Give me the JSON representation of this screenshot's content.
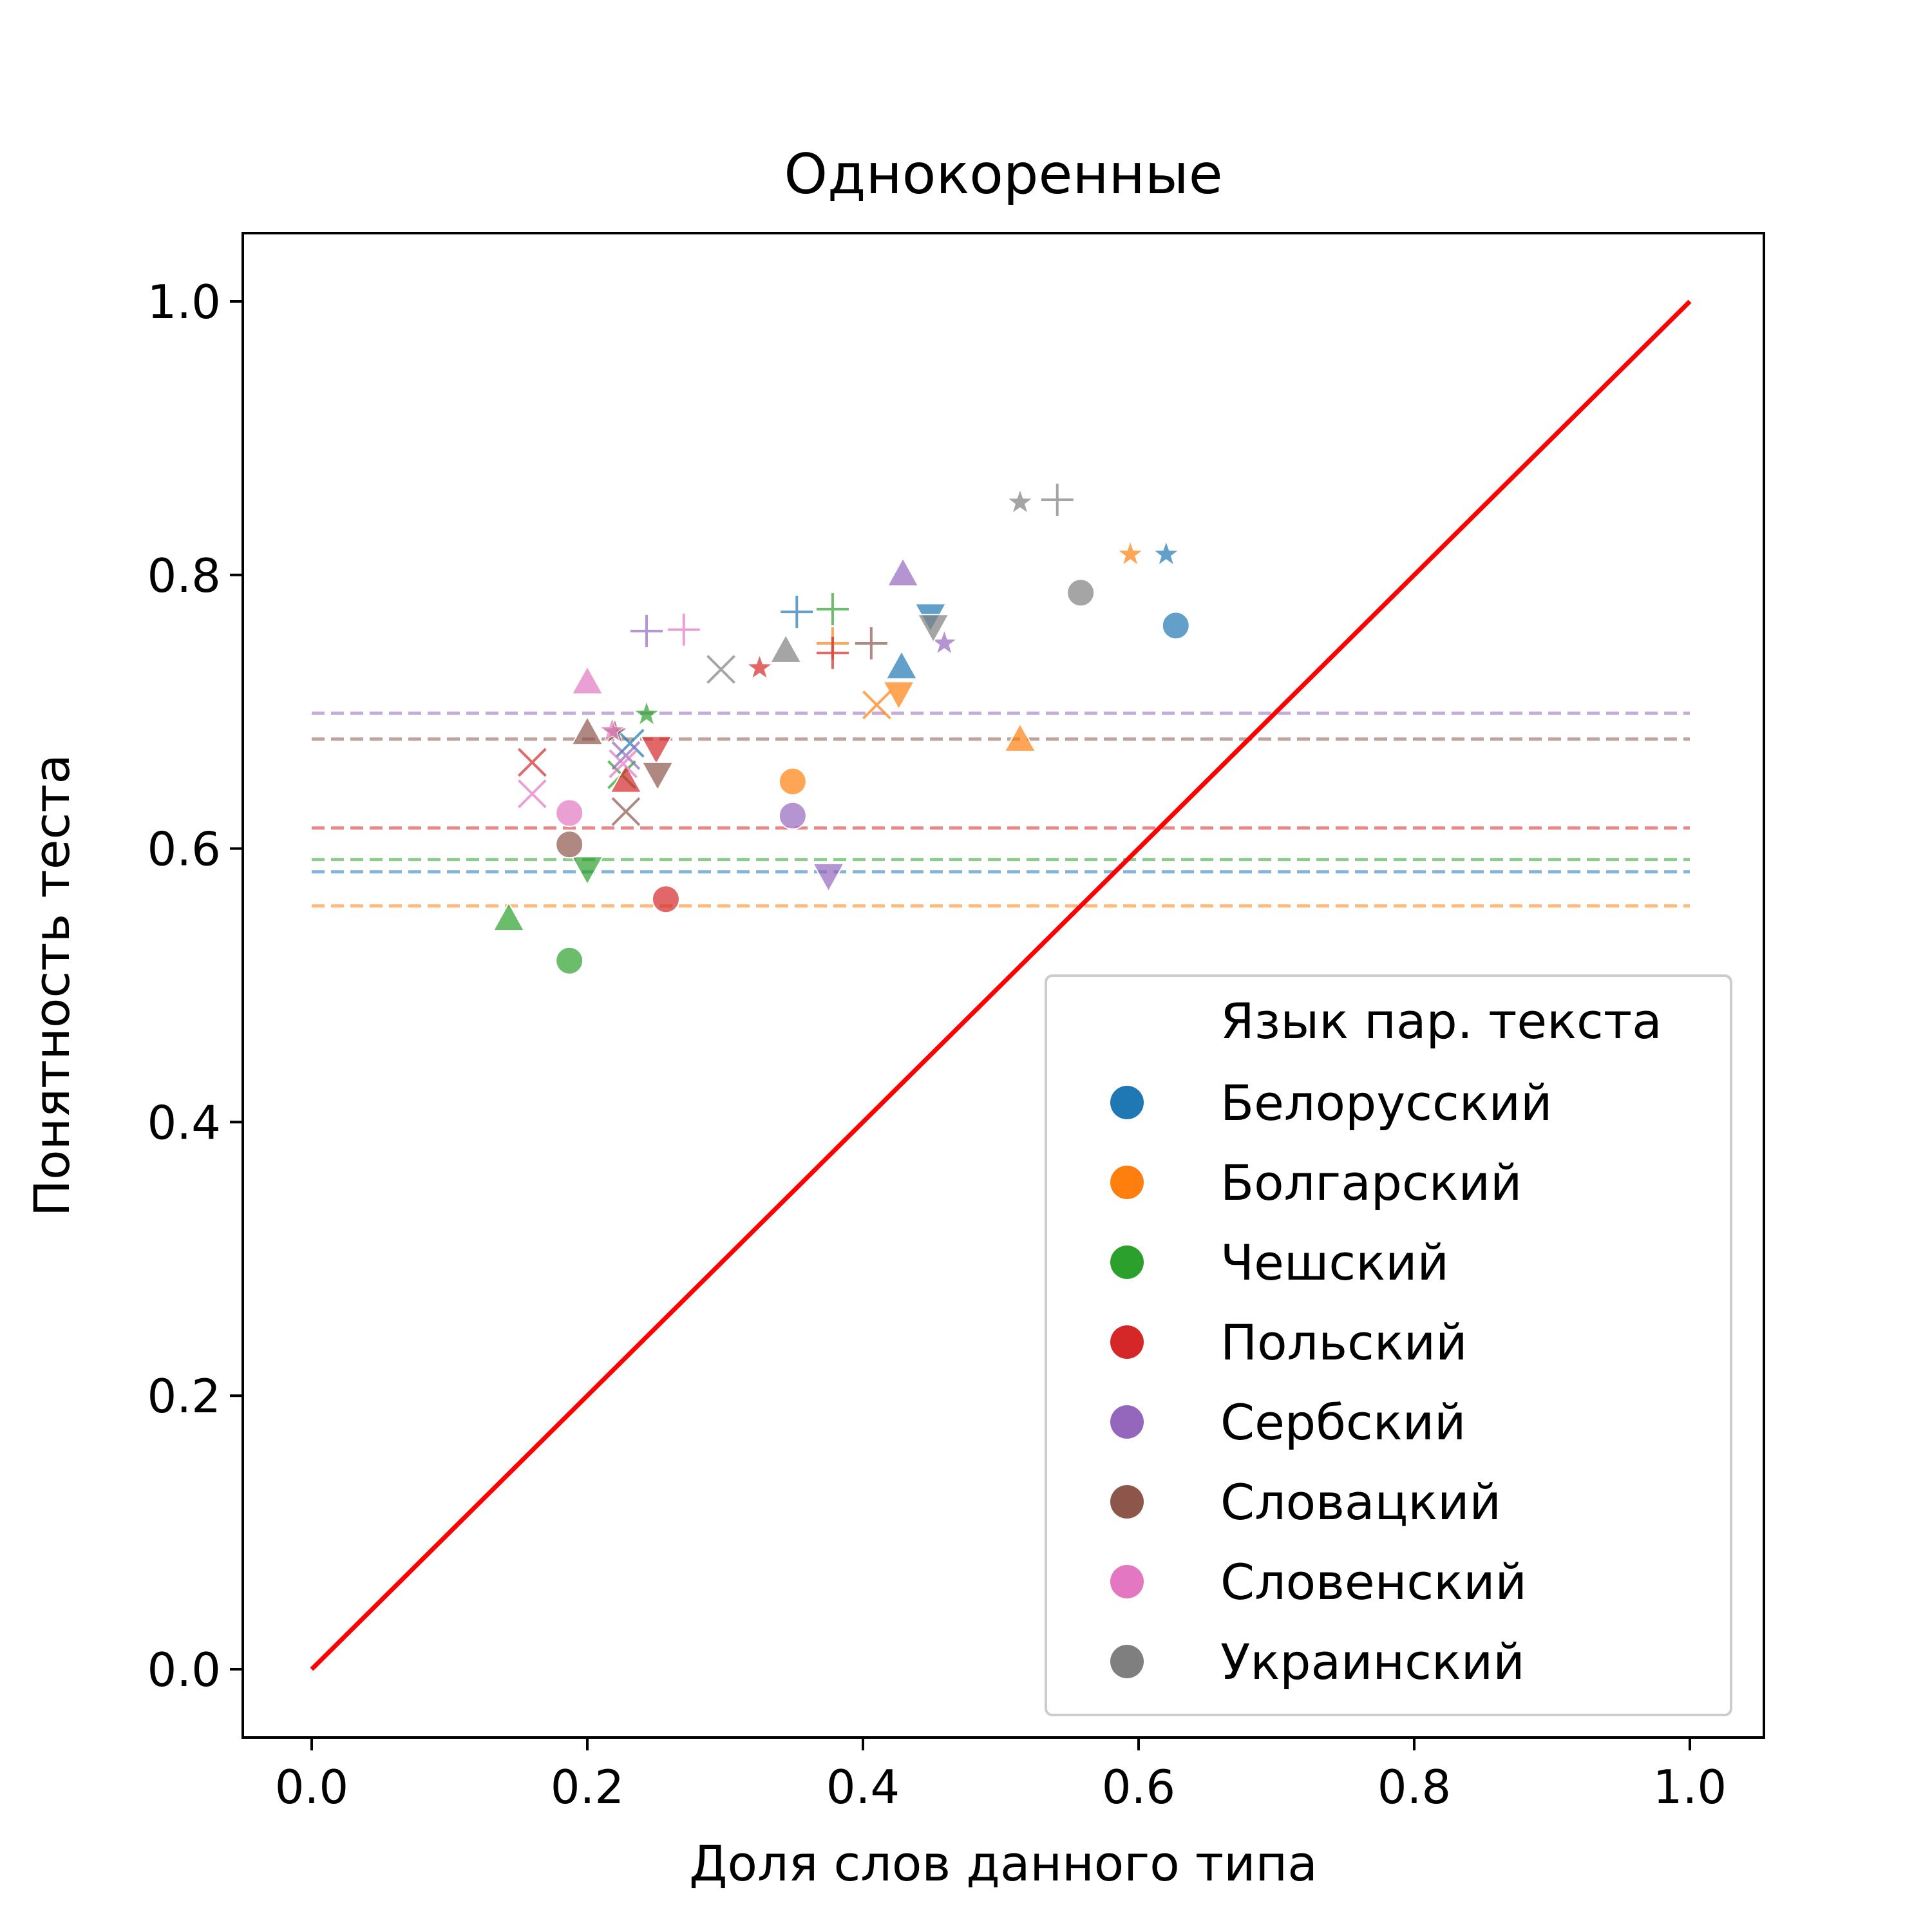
{
  "chart_data": {
    "type": "scatter",
    "title": "Однокоренные",
    "xlabel": "Доля слов данного типа",
    "ylabel": "Понятность теста",
    "xlim": [
      -0.05,
      1.05
    ],
    "ylim": [
      -0.05,
      1.05
    ],
    "xticks": [
      "0.0",
      "0.2",
      "0.4",
      "0.6",
      "0.8",
      "1.0"
    ],
    "yticks": [
      "0.0",
      "0.2",
      "0.4",
      "0.6",
      "0.8",
      "1.0"
    ],
    "grid": false,
    "legend": {
      "title": "Язык пар. текста",
      "placement": "lower-right"
    },
    "reference_line": {
      "x": [
        0,
        1
      ],
      "y": [
        0,
        1
      ],
      "color": "#ff0000"
    },
    "series": [
      {
        "name": "Белорусский",
        "color": "#1f77b4",
        "mean": 0.583,
        "points": [
          {
            "x": 0.627,
            "y": 0.763,
            "m": "o"
          },
          {
            "x": 0.62,
            "y": 0.815,
            "m": "*"
          },
          {
            "x": 0.428,
            "y": 0.733,
            "m": "^"
          },
          {
            "x": 0.449,
            "y": 0.77,
            "m": "v"
          },
          {
            "x": 0.352,
            "y": 0.773,
            "m": "+"
          },
          {
            "x": 0.231,
            "y": 0.677,
            "m": "x"
          }
        ]
      },
      {
        "name": "Болгарский",
        "color": "#ff7f0e",
        "mean": 0.558,
        "points": [
          {
            "x": 0.349,
            "y": 0.649,
            "m": "o"
          },
          {
            "x": 0.594,
            "y": 0.815,
            "m": "*"
          },
          {
            "x": 0.514,
            "y": 0.68,
            "m": "^"
          },
          {
            "x": 0.426,
            "y": 0.713,
            "m": "v"
          },
          {
            "x": 0.378,
            "y": 0.75,
            "m": "+"
          },
          {
            "x": 0.41,
            "y": 0.705,
            "m": "x"
          }
        ]
      },
      {
        "name": "Чешский",
        "color": "#2ca02c",
        "mean": 0.592,
        "points": [
          {
            "x": 0.187,
            "y": 0.518,
            "m": "o"
          },
          {
            "x": 0.243,
            "y": 0.698,
            "m": "*"
          },
          {
            "x": 0.143,
            "y": 0.549,
            "m": "^"
          },
          {
            "x": 0.2,
            "y": 0.585,
            "m": "v"
          },
          {
            "x": 0.378,
            "y": 0.775,
            "m": "+"
          },
          {
            "x": 0.225,
            "y": 0.654,
            "m": "x"
          }
        ]
      },
      {
        "name": "Польский",
        "color": "#d62728",
        "mean": 0.615,
        "points": [
          {
            "x": 0.257,
            "y": 0.563,
            "m": "o"
          },
          {
            "x": 0.325,
            "y": 0.732,
            "m": "*"
          },
          {
            "x": 0.228,
            "y": 0.65,
            "m": "^"
          },
          {
            "x": 0.25,
            "y": 0.673,
            "m": "v"
          },
          {
            "x": 0.378,
            "y": 0.743,
            "m": "+"
          },
          {
            "x": 0.16,
            "y": 0.663,
            "m": "x"
          }
        ]
      },
      {
        "name": "Сербский",
        "color": "#9467bd",
        "mean": 0.699,
        "points": [
          {
            "x": 0.349,
            "y": 0.624,
            "m": "o"
          },
          {
            "x": 0.459,
            "y": 0.75,
            "m": "*"
          },
          {
            "x": 0.429,
            "y": 0.801,
            "m": "^"
          },
          {
            "x": 0.375,
            "y": 0.58,
            "m": "v"
          },
          {
            "x": 0.243,
            "y": 0.759,
            "m": "+"
          },
          {
            "x": 0.228,
            "y": 0.668,
            "m": "x"
          }
        ]
      },
      {
        "name": "Словацкий",
        "color": "#8c564b",
        "mean": 0.68,
        "points": [
          {
            "x": 0.187,
            "y": 0.603,
            "m": "o"
          },
          {
            "x": 0.22,
            "y": 0.685,
            "m": "*"
          },
          {
            "x": 0.2,
            "y": 0.685,
            "m": "^"
          },
          {
            "x": 0.251,
            "y": 0.654,
            "m": "v"
          },
          {
            "x": 0.406,
            "y": 0.75,
            "m": "+"
          },
          {
            "x": 0.228,
            "y": 0.627,
            "m": "x"
          }
        ]
      },
      {
        "name": "Словенский",
        "color": "#e377c2",
        "mean": null,
        "points": [
          {
            "x": 0.187,
            "y": 0.626,
            "m": "o"
          },
          {
            "x": 0.218,
            "y": 0.686,
            "m": "*"
          },
          {
            "x": 0.2,
            "y": 0.722,
            "m": "^"
          },
          {
            "x": 0.27,
            "y": 0.76,
            "m": "+"
          },
          {
            "x": 0.16,
            "y": 0.64,
            "m": "x"
          },
          {
            "x": 0.226,
            "y": 0.662,
            "m": "x"
          }
        ]
      },
      {
        "name": "Украинский",
        "color": "#7f7f7f",
        "mean": null,
        "points": [
          {
            "x": 0.558,
            "y": 0.787,
            "m": "o"
          },
          {
            "x": 0.514,
            "y": 0.853,
            "m": "*"
          },
          {
            "x": 0.344,
            "y": 0.745,
            "m": "^"
          },
          {
            "x": 0.451,
            "y": 0.762,
            "m": "v"
          },
          {
            "x": 0.541,
            "y": 0.855,
            "m": "+"
          },
          {
            "x": 0.297,
            "y": 0.731,
            "m": "x"
          }
        ]
      }
    ]
  }
}
